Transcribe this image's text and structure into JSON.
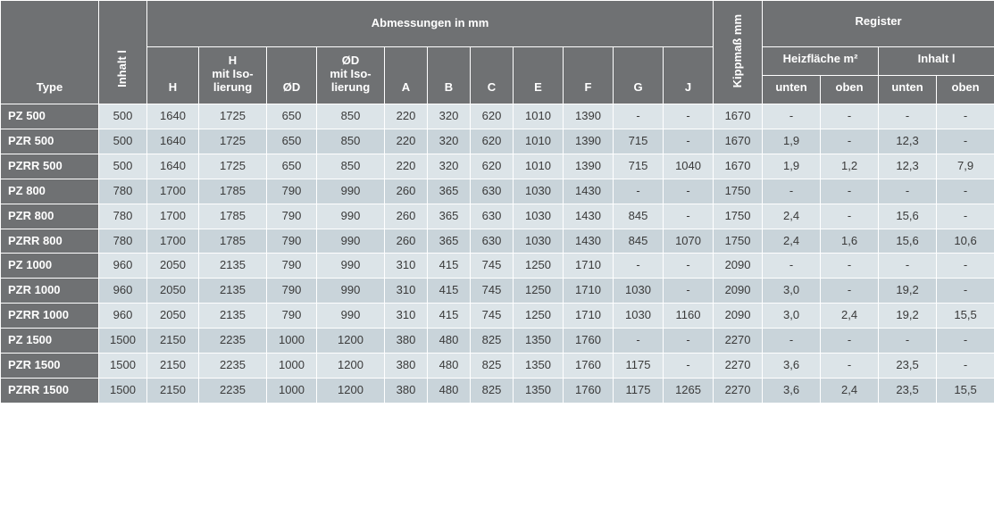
{
  "colors": {
    "header_bg": "#6f7173",
    "row_even_bg": "#dce4e8",
    "row_odd_bg": "#c9d4da",
    "body_text": "#3a3a3a"
  },
  "fonts": {
    "header_fontsize_pt": 10,
    "body_fontsize_pt": 10,
    "header_weight": "bold",
    "body_weight": "normal",
    "family": "Arial"
  },
  "headers": {
    "type": "Type",
    "inhalt": "Inhalt l",
    "abmessungen": "Abmessungen in mm",
    "H": "H",
    "H_iso_l1": "H",
    "H_iso_l2": "mit Iso-",
    "H_iso_l3": "lierung",
    "OD": "ØD",
    "OD_iso_l1": "ØD",
    "OD_iso_l2": "mit Iso-",
    "OD_iso_l3": "lierung",
    "A": "A",
    "B": "B",
    "C": "C",
    "E": "E",
    "F": "F",
    "G": "G",
    "J": "J",
    "kippmass": "Kippmaß mm",
    "register": "Register",
    "heizflaeche": "Heizfläche m²",
    "reg_inhalt": "Inhalt l",
    "unten": "unten",
    "oben": "oben"
  },
  "columns": [
    "type",
    "inhalt",
    "H",
    "H_iso",
    "OD",
    "OD_iso",
    "A",
    "B",
    "C",
    "E",
    "F",
    "G",
    "J",
    "kipp",
    "hf_unten",
    "hf_oben",
    "inh_unten",
    "inh_oben"
  ],
  "rows": [
    {
      "type": "PZ 500",
      "inhalt": "500",
      "H": "1640",
      "H_iso": "1725",
      "OD": "650",
      "OD_iso": "850",
      "A": "220",
      "B": "320",
      "C": "620",
      "E": "1010",
      "F": "1390",
      "G": "-",
      "J": "-",
      "kipp": "1670",
      "hf_unten": "-",
      "hf_oben": "-",
      "inh_unten": "-",
      "inh_oben": "-"
    },
    {
      "type": "PZR 500",
      "inhalt": "500",
      "H": "1640",
      "H_iso": "1725",
      "OD": "650",
      "OD_iso": "850",
      "A": "220",
      "B": "320",
      "C": "620",
      "E": "1010",
      "F": "1390",
      "G": "715",
      "J": "-",
      "kipp": "1670",
      "hf_unten": "1,9",
      "hf_oben": "-",
      "inh_unten": "12,3",
      "inh_oben": "-"
    },
    {
      "type": "PZRR 500",
      "inhalt": "500",
      "H": "1640",
      "H_iso": "1725",
      "OD": "650",
      "OD_iso": "850",
      "A": "220",
      "B": "320",
      "C": "620",
      "E": "1010",
      "F": "1390",
      "G": "715",
      "J": "1040",
      "kipp": "1670",
      "hf_unten": "1,9",
      "hf_oben": "1,2",
      "inh_unten": "12,3",
      "inh_oben": "7,9"
    },
    {
      "type": "PZ 800",
      "inhalt": "780",
      "H": "1700",
      "H_iso": "1785",
      "OD": "790",
      "OD_iso": "990",
      "A": "260",
      "B": "365",
      "C": "630",
      "E": "1030",
      "F": "1430",
      "G": "-",
      "J": "-",
      "kipp": "1750",
      "hf_unten": "-",
      "hf_oben": "-",
      "inh_unten": "-",
      "inh_oben": "-"
    },
    {
      "type": "PZR 800",
      "inhalt": "780",
      "H": "1700",
      "H_iso": "1785",
      "OD": "790",
      "OD_iso": "990",
      "A": "260",
      "B": "365",
      "C": "630",
      "E": "1030",
      "F": "1430",
      "G": "845",
      "J": "-",
      "kipp": "1750",
      "hf_unten": "2,4",
      "hf_oben": "-",
      "inh_unten": "15,6",
      "inh_oben": "-"
    },
    {
      "type": "PZRR 800",
      "inhalt": "780",
      "H": "1700",
      "H_iso": "1785",
      "OD": "790",
      "OD_iso": "990",
      "A": "260",
      "B": "365",
      "C": "630",
      "E": "1030",
      "F": "1430",
      "G": "845",
      "J": "1070",
      "kipp": "1750",
      "hf_unten": "2,4",
      "hf_oben": "1,6",
      "inh_unten": "15,6",
      "inh_oben": "10,6"
    },
    {
      "type": "PZ 1000",
      "inhalt": "960",
      "H": "2050",
      "H_iso": "2135",
      "OD": "790",
      "OD_iso": "990",
      "A": "310",
      "B": "415",
      "C": "745",
      "E": "1250",
      "F": "1710",
      "G": "-",
      "J": "-",
      "kipp": "2090",
      "hf_unten": "-",
      "hf_oben": "-",
      "inh_unten": "-",
      "inh_oben": "-"
    },
    {
      "type": "PZR 1000",
      "inhalt": "960",
      "H": "2050",
      "H_iso": "2135",
      "OD": "790",
      "OD_iso": "990",
      "A": "310",
      "B": "415",
      "C": "745",
      "E": "1250",
      "F": "1710",
      "G": "1030",
      "J": "-",
      "kipp": "2090",
      "hf_unten": "3,0",
      "hf_oben": "-",
      "inh_unten": "19,2",
      "inh_oben": "-"
    },
    {
      "type": "PZRR 1000",
      "inhalt": "960",
      "H": "2050",
      "H_iso": "2135",
      "OD": "790",
      "OD_iso": "990",
      "A": "310",
      "B": "415",
      "C": "745",
      "E": "1250",
      "F": "1710",
      "G": "1030",
      "J": "1160",
      "kipp": "2090",
      "hf_unten": "3,0",
      "hf_oben": "2,4",
      "inh_unten": "19,2",
      "inh_oben": "15,5"
    },
    {
      "type": "PZ 1500",
      "inhalt": "1500",
      "H": "2150",
      "H_iso": "2235",
      "OD": "1000",
      "OD_iso": "1200",
      "A": "380",
      "B": "480",
      "C": "825",
      "E": "1350",
      "F": "1760",
      "G": "-",
      "J": "-",
      "kipp": "2270",
      "hf_unten": "-",
      "hf_oben": "-",
      "inh_unten": "-",
      "inh_oben": "-"
    },
    {
      "type": "PZR 1500",
      "inhalt": "1500",
      "H": "2150",
      "H_iso": "2235",
      "OD": "1000",
      "OD_iso": "1200",
      "A": "380",
      "B": "480",
      "C": "825",
      "E": "1350",
      "F": "1760",
      "G": "1175",
      "J": "-",
      "kipp": "2270",
      "hf_unten": "3,6",
      "hf_oben": "-",
      "inh_unten": "23,5",
      "inh_oben": "-"
    },
    {
      "type": "PZRR 1500",
      "inhalt": "1500",
      "H": "2150",
      "H_iso": "2235",
      "OD": "1000",
      "OD_iso": "1200",
      "A": "380",
      "B": "480",
      "C": "825",
      "E": "1350",
      "F": "1760",
      "G": "1175",
      "J": "1265",
      "kipp": "2270",
      "hf_unten": "3,6",
      "hf_oben": "2,4",
      "inh_unten": "23,5",
      "inh_oben": "15,5"
    }
  ]
}
